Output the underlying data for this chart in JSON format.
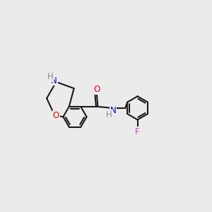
{
  "bg_color": "#ebebeb",
  "bond_color": "#1a1a1a",
  "bond_width": 1.5,
  "atom_colors": {
    "O": "#ff0000",
    "N": "#0000cd",
    "F": "#cc44cc",
    "H": "#888888",
    "C": "#1a1a1a"
  },
  "font_size": 8.5,
  "fig_width": 3.0,
  "fig_height": 3.0
}
